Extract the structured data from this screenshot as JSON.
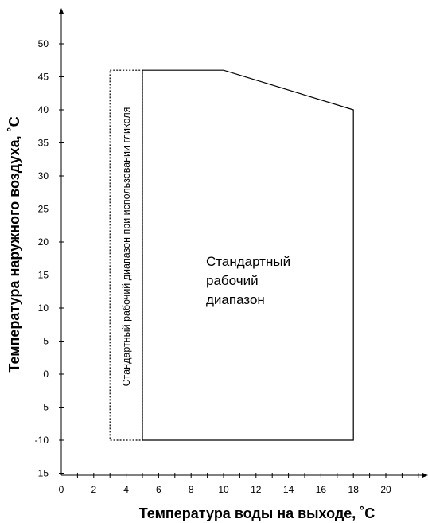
{
  "chart_data": {
    "type": "area",
    "title": "",
    "xlabel": "Температура воды на выходе, ˚C",
    "ylabel": "Температура наружного воздуха, ˚C",
    "xlim": [
      0,
      22
    ],
    "ylim": [
      -15,
      55
    ],
    "x_ticks": [
      0,
      2,
      4,
      6,
      8,
      10,
      12,
      14,
      16,
      18,
      20
    ],
    "y_ticks": [
      -15,
      -10,
      -5,
      0,
      5,
      10,
      15,
      20,
      25,
      30,
      35,
      40,
      45,
      50
    ],
    "grid": false,
    "series": [
      {
        "label": "Стандартный рабочий диапазон",
        "label_lines": [
          "Стандартный",
          "рабочий",
          "диапазон"
        ],
        "style": "solid",
        "x": [
          5,
          10,
          18,
          18,
          5
        ],
        "y": [
          46,
          46,
          40,
          -10,
          -10
        ]
      },
      {
        "label": "Стандартный рабочий диапазон при использовании гликоля",
        "style": "dotted",
        "x": [
          3,
          5,
          5,
          3
        ],
        "y": [
          46,
          46,
          -10,
          -10
        ]
      }
    ]
  }
}
